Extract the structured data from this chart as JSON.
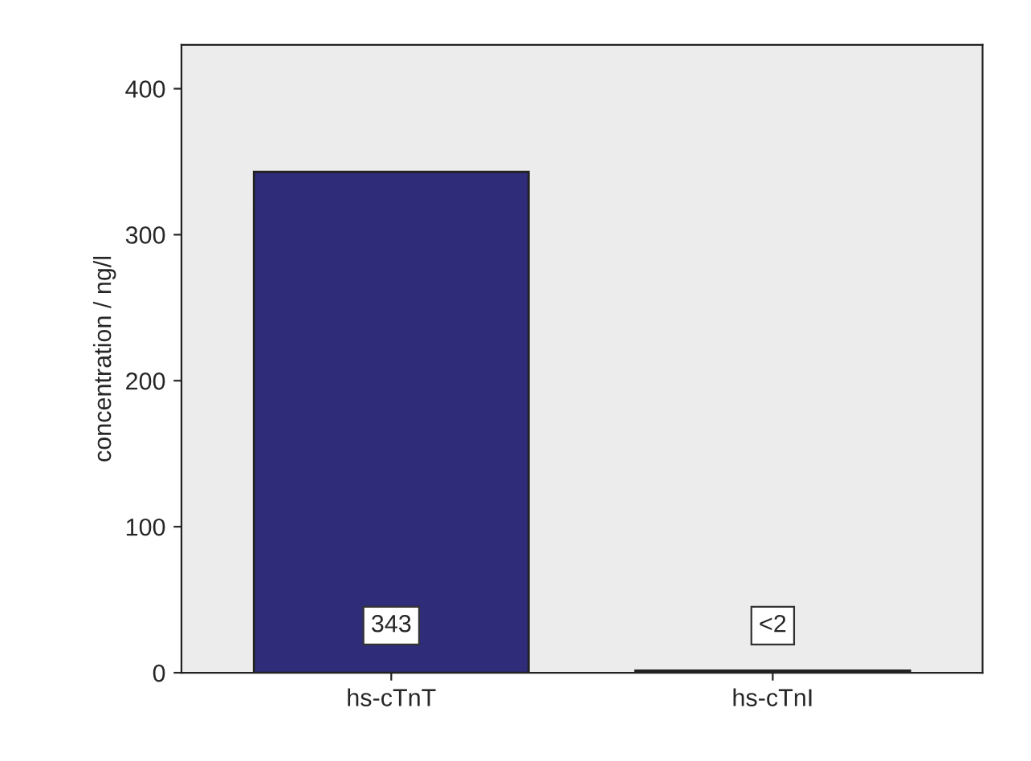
{
  "chart_data": {
    "type": "bar",
    "ylabel": "concentration / ng/l",
    "categories": [
      "hs-cTnT",
      "hs-cTnI"
    ],
    "values": [
      343,
      1.5
    ],
    "colors": [
      "#2f2c7a",
      "#6b5a2a"
    ],
    "value_labels": [
      "343",
      "<2"
    ],
    "ylim": [
      0,
      430
    ],
    "yticks": [
      0,
      100,
      200,
      300,
      400
    ],
    "grid": false,
    "legend": false
  }
}
